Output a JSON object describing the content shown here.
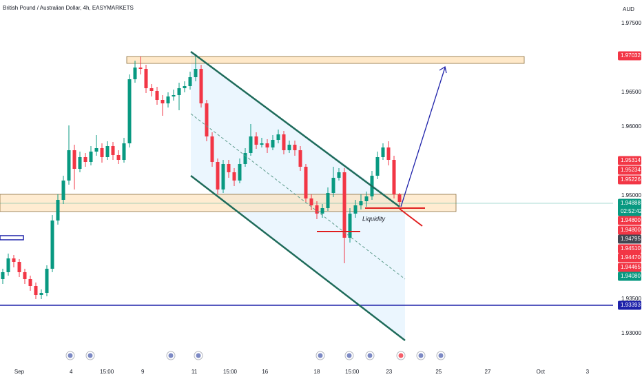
{
  "chart_data": {
    "type": "candlestick",
    "title": "British Pound / Australian Dollar, 4h, EASYMARKETS",
    "currency": "AUD",
    "annotation": "Liquidity",
    "up_color": "#089981",
    "down_color": "#f23645",
    "grid": false,
    "open": [
      1.9379,
      1.9389,
      1.9409,
      1.9404,
      1.9389,
      1.9379,
      1.9369,
      1.9356,
      1.9359,
      1.9394,
      1.9464,
      1.9494,
      1.9522,
      1.9566,
      1.9539,
      1.9556,
      1.9549,
      1.9564,
      1.9569,
      1.9556,
      1.9572,
      1.9559,
      1.9552,
      1.9576,
      1.9669,
      1.9686,
      1.9684,
      1.9656,
      1.9652,
      1.9639,
      1.9634,
      1.9644,
      1.9646,
      1.9656,
      1.9659,
      1.9672,
      1.9684,
      1.9634,
      1.9586,
      1.9549,
      1.9509,
      1.9546,
      1.9534,
      1.9522,
      1.9546,
      1.9562,
      1.9586,
      1.9574,
      1.9576,
      1.957,
      1.9581,
      1.9589,
      1.9566,
      1.9574,
      1.9566,
      1.9542,
      1.9496,
      1.9486,
      1.9474,
      1.9482,
      1.9504,
      1.9526,
      1.9534,
      1.9439,
      1.9474,
      1.9486,
      1.9492,
      1.9499,
      1.9529,
      1.9556,
      1.957,
      1.9552,
      1.9502
    ],
    "high": [
      1.9394,
      1.9416,
      1.9414,
      1.9408,
      1.9394,
      1.9384,
      1.9374,
      1.9364,
      1.9399,
      1.9472,
      1.9502,
      1.9529,
      1.9602,
      1.9574,
      1.9564,
      1.9562,
      1.9572,
      1.9588,
      1.9576,
      1.9579,
      1.9578,
      1.9566,
      1.9584,
      1.9676,
      1.9696,
      1.9702,
      1.969,
      1.9662,
      1.9658,
      1.9646,
      1.965,
      1.9654,
      1.9664,
      1.9666,
      1.968,
      1.9706,
      1.969,
      1.9639,
      1.9592,
      1.9554,
      1.9552,
      1.9552,
      1.954,
      1.9554,
      1.9569,
      1.9604,
      1.9592,
      1.9584,
      1.9582,
      1.9588,
      1.9596,
      1.9594,
      1.958,
      1.958,
      1.9572,
      1.9546,
      1.9502,
      1.9492,
      1.9488,
      1.9512,
      1.9542,
      1.954,
      1.954,
      1.9482,
      1.9494,
      1.9502,
      1.9506,
      1.9536,
      1.9564,
      1.9576,
      1.9579,
      1.9558,
      1.9504
    ],
    "low": [
      1.9372,
      1.9384,
      1.9396,
      1.9382,
      1.9372,
      1.9362,
      1.935,
      1.935,
      1.9354,
      1.9389,
      1.9458,
      1.9488,
      1.9516,
      1.9509,
      1.9534,
      1.9542,
      1.9544,
      1.9558,
      1.9548,
      1.9552,
      1.9552,
      1.9546,
      1.9548,
      1.957,
      1.9664,
      1.9676,
      1.9649,
      1.9644,
      1.9632,
      1.9616,
      1.9628,
      1.9638,
      1.9624,
      1.965,
      1.9654,
      1.9666,
      1.9628,
      1.9579,
      1.9542,
      1.9502,
      1.9504,
      1.9526,
      1.9514,
      1.9518,
      1.9542,
      1.9558,
      1.9568,
      1.957,
      1.9562,
      1.9566,
      1.9576,
      1.956,
      1.9562,
      1.9558,
      1.9536,
      1.949,
      1.9479,
      1.9466,
      1.9468,
      1.9478,
      1.9498,
      1.9522,
      1.9402,
      1.9432,
      1.9468,
      1.948,
      1.9484,
      1.9494,
      1.9524,
      1.9552,
      1.9544,
      1.9496,
      1.9484
    ],
    "close": [
      1.9389,
      1.9409,
      1.9404,
      1.9389,
      1.9379,
      1.9369,
      1.9356,
      1.9359,
      1.9394,
      1.9464,
      1.9494,
      1.9522,
      1.9566,
      1.9539,
      1.9556,
      1.9549,
      1.9564,
      1.9569,
      1.9556,
      1.9572,
      1.9559,
      1.9552,
      1.9576,
      1.9669,
      1.9686,
      1.9684,
      1.9656,
      1.9652,
      1.9639,
      1.9634,
      1.9644,
      1.9646,
      1.9656,
      1.9659,
      1.9672,
      1.9684,
      1.9634,
      1.9586,
      1.9549,
      1.9509,
      1.9546,
      1.9534,
      1.9522,
      1.9546,
      1.9562,
      1.9586,
      1.9574,
      1.9576,
      1.957,
      1.9581,
      1.9589,
      1.9566,
      1.9574,
      1.9566,
      1.9542,
      1.9496,
      1.9486,
      1.9474,
      1.9482,
      1.9504,
      1.9526,
      1.9534,
      1.9439,
      1.9474,
      1.9486,
      1.9492,
      1.9499,
      1.9529,
      1.9556,
      1.957,
      1.9552,
      1.9502,
      1.9491
    ],
    "xlim": [
      -0.5,
      110.75
    ],
    "xticks": [
      {
        "value": 3,
        "label": "Sep"
      },
      {
        "value": 12.4,
        "label": "4"
      },
      {
        "value": 18.9,
        "label": "15:00"
      },
      {
        "value": 25.4,
        "label": "9"
      },
      {
        "value": 34.75,
        "label": "11"
      },
      {
        "value": 41.25,
        "label": "15:00"
      },
      {
        "value": 47.6,
        "label": "16"
      },
      {
        "value": 57,
        "label": "18"
      },
      {
        "value": 63.4,
        "label": "15:00"
      },
      {
        "value": 70.1,
        "label": "23"
      },
      {
        "value": 79.1,
        "label": "25"
      },
      {
        "value": 88,
        "label": "27"
      },
      {
        "value": 97.6,
        "label": "Oct"
      },
      {
        "value": 106.1,
        "label": "3"
      }
    ],
    "ylim": [
      1.9254,
      1.9784
    ],
    "yticks": [
      {
        "value": 1.975,
        "label": "1.97500"
      },
      {
        "value": 1.965,
        "label": "1.96500"
      },
      {
        "value": 1.96,
        "label": "1.96000"
      },
      {
        "value": 1.95,
        "label": "1.95000"
      },
      {
        "value": 1.935,
        "label": "1.93500"
      },
      {
        "value": 1.93,
        "label": "1.93000"
      }
    ],
    "price_badges": [
      {
        "label": "1.97032",
        "color": "#f23645"
      },
      {
        "label": "1.95314",
        "color": "#f23645"
      },
      {
        "label": "1.95234",
        "color": "#f23645"
      },
      {
        "label": "1.95226",
        "color": "#f23645"
      },
      {
        "label": "1.94888",
        "color": "#089981",
        "countdown": "02:52:42"
      },
      {
        "label": "1.94800",
        "color": "#f23645"
      },
      {
        "label": "1.94800",
        "color": "#f23645"
      },
      {
        "label": "1.94795",
        "color": "#434651"
      },
      {
        "label": "1.94510",
        "color": "#f23645"
      },
      {
        "label": "1.94470",
        "color": "#f23645"
      },
      {
        "label": "1.94465",
        "color": "#f23645"
      },
      {
        "label": "1.94080",
        "color": "#089981"
      },
      {
        "label": "1.93393",
        "color": "#1e22aa"
      }
    ]
  }
}
